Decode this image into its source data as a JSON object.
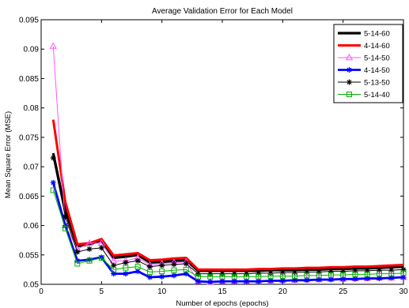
{
  "chart_data": {
    "type": "line",
    "title": "Average Validation Error for Each Model",
    "xlabel": "Number of epochs (epochs)",
    "ylabel": "Mean Square Error (MSE)",
    "xlim": [
      0,
      30
    ],
    "ylim": [
      0.05,
      0.095
    ],
    "xticks": [
      0,
      5,
      10,
      15,
      20,
      25,
      30
    ],
    "yticks": [
      0.05,
      0.055,
      0.06,
      0.065,
      0.07,
      0.075,
      0.08,
      0.085,
      0.09,
      0.095
    ],
    "grid": false,
    "legend_position": "top-right",
    "x": [
      1,
      2,
      3,
      4,
      5,
      6,
      7,
      8,
      9,
      10,
      11,
      12,
      13,
      14,
      15,
      16,
      17,
      18,
      19,
      20,
      21,
      22,
      23,
      24,
      25,
      26,
      27,
      28,
      29,
      30
    ],
    "series": [
      {
        "name": "5-14-60",
        "color": "#000000",
        "marker": "none",
        "line_width": 3.2,
        "values": [
          0.0723,
          0.0625,
          0.0565,
          0.0568,
          0.0575,
          0.0545,
          0.0547,
          0.055,
          0.0537,
          0.0538,
          0.054,
          0.0541,
          0.0523,
          0.0523,
          0.0523,
          0.0523,
          0.0523,
          0.0523,
          0.0524,
          0.0524,
          0.0524,
          0.0525,
          0.0525,
          0.0526,
          0.0526,
          0.0527,
          0.0527,
          0.0528,
          0.0529,
          0.053
        ]
      },
      {
        "name": "4-14-60",
        "color": "#ff0000",
        "marker": "none",
        "line_width": 3.0,
        "values": [
          0.078,
          0.064,
          0.0568,
          0.057,
          0.0577,
          0.0549,
          0.0551,
          0.0553,
          0.0541,
          0.0542,
          0.0544,
          0.0545,
          0.0525,
          0.0525,
          0.0525,
          0.0525,
          0.0525,
          0.0526,
          0.0526,
          0.0527,
          0.0527,
          0.0528,
          0.0528,
          0.0529,
          0.0529,
          0.053,
          0.053,
          0.0531,
          0.0532,
          0.0533
        ]
      },
      {
        "name": "5-14-50",
        "color": "#ff55ff",
        "marker": "triangle",
        "line_width": 1.0,
        "values": [
          0.0905,
          0.06,
          0.056,
          0.057,
          0.057,
          0.054,
          0.054,
          0.0545,
          0.0533,
          0.0535,
          0.0537,
          0.0538,
          0.0505,
          0.0504,
          0.0505,
          0.0505,
          0.0505,
          0.0506,
          0.0506,
          0.0507,
          0.0507,
          0.0508,
          0.0508,
          0.0509,
          0.0509,
          0.051,
          0.051,
          0.0511,
          0.0511,
          0.0512
        ]
      },
      {
        "name": "4-14-50",
        "color": "#0000ff",
        "marker": "star",
        "line_width": 2.8,
        "values": [
          0.0673,
          0.06,
          0.054,
          0.0542,
          0.0546,
          0.0518,
          0.0518,
          0.0522,
          0.0512,
          0.0513,
          0.0515,
          0.0518,
          0.0505,
          0.0504,
          0.0505,
          0.0505,
          0.0505,
          0.0505,
          0.0506,
          0.0506,
          0.0507,
          0.0507,
          0.0508,
          0.0508,
          0.0509,
          0.0509,
          0.051,
          0.051,
          0.0511,
          0.0512
        ]
      },
      {
        "name": "5-13-50",
        "color": "#000000",
        "marker": "star",
        "line_width": 1.0,
        "values": [
          0.0715,
          0.0615,
          0.0555,
          0.056,
          0.0562,
          0.0532,
          0.0537,
          0.054,
          0.053,
          0.0532,
          0.0534,
          0.0535,
          0.0518,
          0.0518,
          0.0518,
          0.0518,
          0.0518,
          0.0519,
          0.0519,
          0.052,
          0.052,
          0.0521,
          0.0521,
          0.0522,
          0.0522,
          0.0523,
          0.0523,
          0.0524,
          0.0524,
          0.0525
        ]
      },
      {
        "name": "5-14-40",
        "color": "#00b000",
        "marker": "square",
        "line_width": 1.0,
        "values": [
          0.066,
          0.0595,
          0.0535,
          0.054,
          0.0545,
          0.0525,
          0.0528,
          0.053,
          0.0521,
          0.0522,
          0.0524,
          0.0525,
          0.0513,
          0.0513,
          0.0513,
          0.0513,
          0.0513,
          0.0513,
          0.0514,
          0.0514,
          0.0514,
          0.0515,
          0.0515,
          0.0516,
          0.0516,
          0.0517,
          0.0517,
          0.0518,
          0.0518,
          0.0519
        ]
      }
    ]
  }
}
